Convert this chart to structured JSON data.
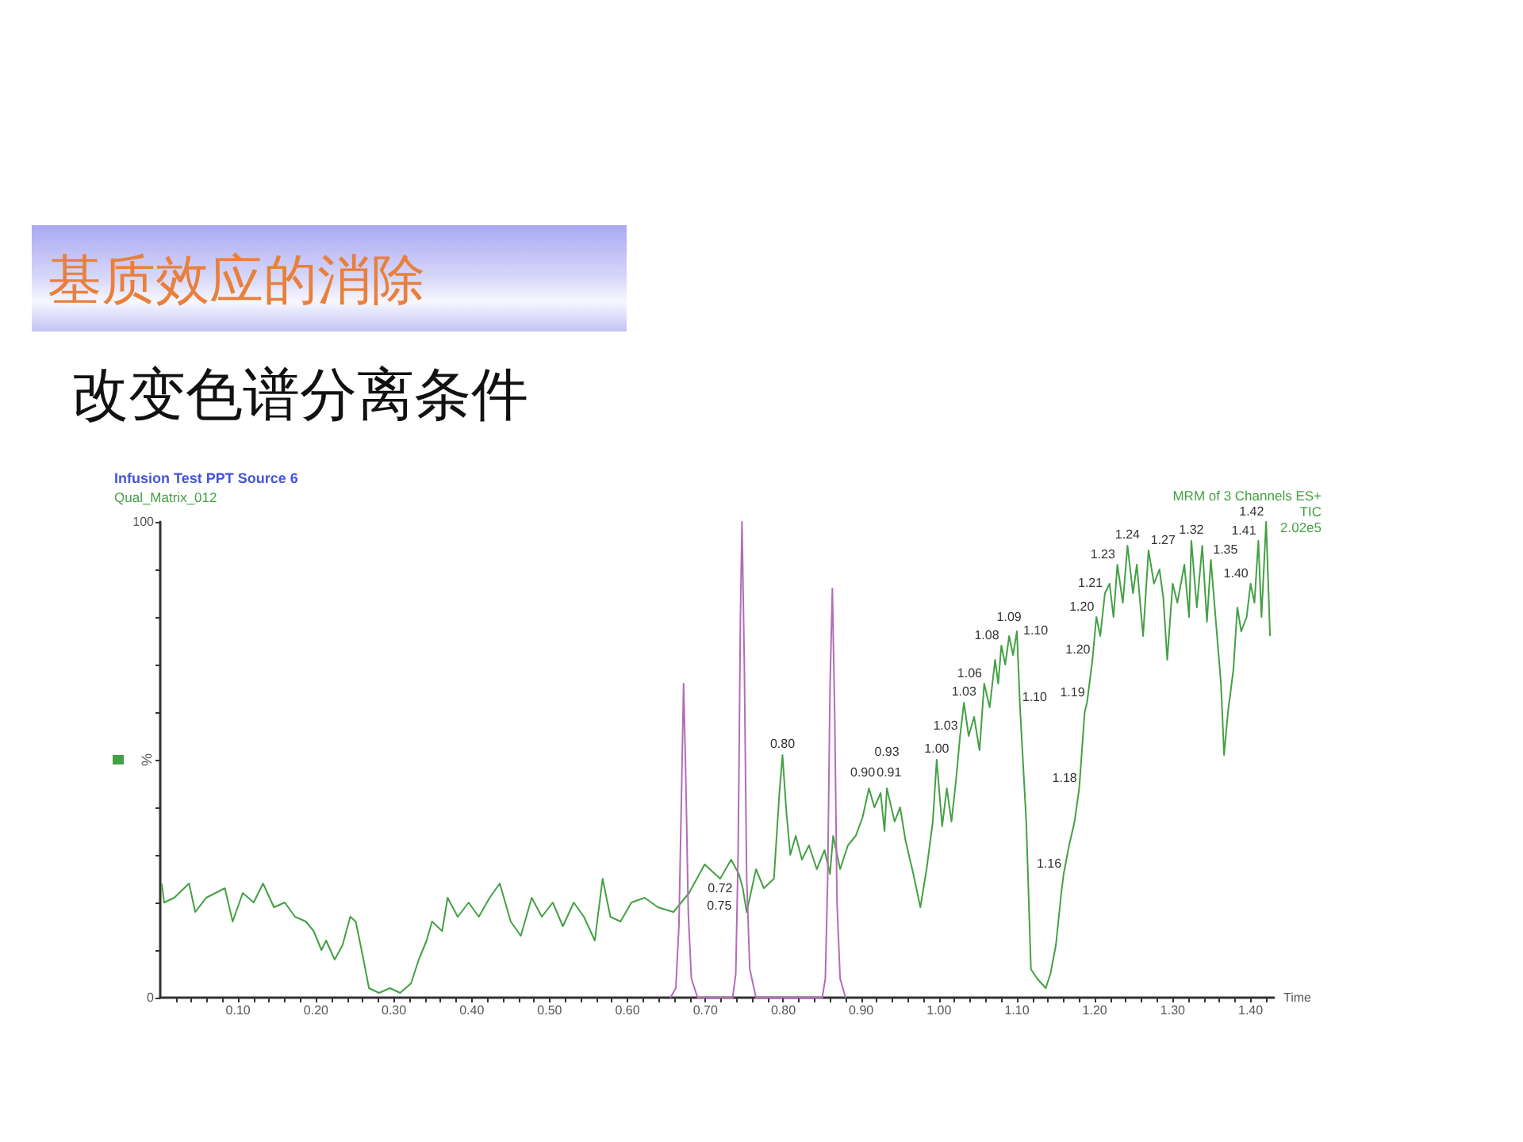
{
  "chart_data": {
    "type": "line",
    "title": "基质效应的消除",
    "subtitle": "改变色谱分离条件",
    "xlabel": "Time",
    "ylabel": "%",
    "annotations": [
      "Infusion Test PPT Source 6",
      "Qual_Matrix_012",
      "MRM of 3 Channels ES+",
      "TIC",
      "2.02e5",
      {
        "text": "0.72",
        "x": 0.719,
        "y": 25
      },
      {
        "text": "0.75",
        "x": 0.748,
        "y": 23
      },
      {
        "text": "0.80",
        "x": 0.799,
        "y": 51
      },
      {
        "text": "0.90",
        "x": 0.902,
        "y": 38
      },
      {
        "text": "0.91",
        "x": 0.91,
        "y": 44
      },
      {
        "text": "0.93",
        "x": 0.933,
        "y": 44
      },
      {
        "text": "1.00",
        "x": 0.997,
        "y": 50
      },
      {
        "text": "1.03",
        "x": 1.027,
        "y": 55
      },
      {
        "text": "1.03",
        "x": 1.032,
        "y": 62
      },
      {
        "text": "1.06",
        "x": 1.058,
        "y": 66
      },
      {
        "text": "1.08",
        "x": 1.08,
        "y": 74
      },
      {
        "text": "1.09",
        "x": 1.09,
        "y": 76
      },
      {
        "text": "1.10",
        "x": 1.1,
        "y": 77
      },
      {
        "text": "1.10",
        "x": 1.104,
        "y": 61
      },
      {
        "text": "1.16",
        "x": 1.16,
        "y": 26
      },
      {
        "text": "1.18",
        "x": 1.18,
        "y": 44
      },
      {
        "text": "1.19",
        "x": 1.19,
        "y": 62
      },
      {
        "text": "1.20",
        "x": 1.197,
        "y": 71
      },
      {
        "text": "1.20",
        "x": 1.202,
        "y": 80
      },
      {
        "text": "1.21",
        "x": 1.213,
        "y": 85
      },
      {
        "text": "1.23",
        "x": 1.229,
        "y": 91
      },
      {
        "text": "1.24",
        "x": 1.242,
        "y": 95
      },
      {
        "text": "1.27",
        "x": 1.269,
        "y": 94
      },
      {
        "text": "1.32",
        "x": 1.324,
        "y": 96
      },
      {
        "text": "1.35",
        "x": 1.349,
        "y": 92
      },
      {
        "text": "1.40",
        "x": 1.4,
        "y": 87
      },
      {
        "text": "1.41",
        "x": 1.41,
        "y": 96
      },
      {
        "text": "1.42",
        "x": 1.42,
        "y": 100
      }
    ],
    "series": [
      {
        "color": "#44a044",
        "x": [
          0.002,
          0.005,
          0.018,
          0.037,
          0.045,
          0.059,
          0.083,
          0.093,
          0.106,
          0.12,
          0.132,
          0.146,
          0.16,
          0.173,
          0.187,
          0.197,
          0.207,
          0.213,
          0.224,
          0.234,
          0.244,
          0.251,
          0.261,
          0.268,
          0.281,
          0.295,
          0.308,
          0.322,
          0.332,
          0.342,
          0.349,
          0.362,
          0.369,
          0.382,
          0.396,
          0.409,
          0.423,
          0.436,
          0.45,
          0.463,
          0.477,
          0.49,
          0.504,
          0.517,
          0.531,
          0.544,
          0.558,
          0.568,
          0.578,
          0.591,
          0.605,
          0.622,
          0.639,
          0.659,
          0.679,
          0.699,
          0.719,
          0.733,
          0.743,
          0.748,
          0.753,
          0.765,
          0.775,
          0.788,
          0.795,
          0.799,
          0.804,
          0.809,
          0.816,
          0.824,
          0.833,
          0.843,
          0.853,
          0.86,
          0.864,
          0.873,
          0.883,
          0.893,
          0.902,
          0.91,
          0.917,
          0.925,
          0.93,
          0.933,
          0.943,
          0.95,
          0.957,
          0.967,
          0.976,
          0.984,
          0.992,
          0.997,
          1.004,
          1.01,
          1.016,
          1.022,
          1.027,
          1.032,
          1.038,
          1.045,
          1.052,
          1.058,
          1.065,
          1.072,
          1.076,
          1.08,
          1.085,
          1.09,
          1.095,
          1.1,
          1.104,
          1.112,
          1.118,
          1.126,
          1.137,
          1.143,
          1.15,
          1.157,
          1.16,
          1.167,
          1.174,
          1.18,
          1.187,
          1.19,
          1.197,
          1.202,
          1.207,
          1.213,
          1.219,
          1.224,
          1.229,
          1.236,
          1.242,
          1.249,
          1.254,
          1.262,
          1.269,
          1.276,
          1.283,
          1.288,
          1.293,
          1.3,
          1.306,
          1.315,
          1.321,
          1.324,
          1.331,
          1.338,
          1.344,
          1.349,
          1.358,
          1.362,
          1.366,
          1.371,
          1.378,
          1.383,
          1.388,
          1.395,
          1.4,
          1.405,
          1.41,
          1.414,
          1.42,
          1.425
        ],
        "values": [
          24,
          20,
          21,
          24,
          18,
          21,
          23,
          16,
          22,
          20,
          24,
          19,
          20,
          17,
          16,
          14,
          10,
          12,
          8,
          11,
          17,
          16,
          8,
          2,
          1,
          2,
          1,
          3,
          8,
          12,
          16,
          14,
          21,
          17,
          20,
          17,
          21,
          24,
          16,
          13,
          21,
          17,
          20,
          15,
          20,
          17,
          12,
          25,
          17,
          16,
          20,
          21,
          19,
          18,
          22,
          28,
          25,
          29,
          26,
          23,
          18,
          27,
          23,
          25,
          43,
          51,
          39,
          30,
          34,
          29,
          32,
          27,
          31,
          26,
          34,
          27,
          32,
          34,
          38,
          44,
          40,
          43,
          35,
          44,
          37,
          40,
          33,
          26,
          19,
          27,
          37,
          50,
          36,
          44,
          37,
          46,
          55,
          62,
          55,
          59,
          52,
          66,
          61,
          71,
          66,
          74,
          70,
          76,
          72,
          77,
          61,
          37,
          6,
          4,
          2,
          5,
          11,
          22,
          26,
          32,
          37,
          44,
          60,
          62,
          71,
          80,
          76,
          85,
          87,
          80,
          91,
          83,
          95,
          85,
          91,
          76,
          94,
          87,
          90,
          84,
          71,
          87,
          83,
          91,
          80,
          96,
          82,
          95,
          79,
          92,
          74,
          66,
          51,
          60,
          69,
          82,
          77,
          80,
          87,
          83,
          96,
          80,
          100,
          76
        ]
      },
      {
        "color": "#b36cb8",
        "x": [
          0.655,
          0.662,
          0.666,
          0.669,
          0.672,
          0.675,
          0.678,
          0.682,
          0.69,
          0.735,
          0.739,
          0.742,
          0.745,
          0.747,
          0.75,
          0.753,
          0.757,
          0.765,
          0.85,
          0.854,
          0.857,
          0.86,
          0.863,
          0.866,
          0.869,
          0.873,
          0.88
        ],
        "values": [
          0,
          2,
          15,
          40,
          66,
          45,
          18,
          4,
          0,
          0,
          5,
          30,
          80,
          100,
          70,
          25,
          6,
          0,
          0,
          4,
          25,
          65,
          86,
          60,
          20,
          4,
          0
        ]
      }
    ],
    "xlim": [
      0,
      1.43
    ],
    "ylim": [
      0,
      100
    ],
    "xticks": [
      {
        "value": 0.02,
        "label": null
      },
      {
        "value": 0.04,
        "label": null
      },
      {
        "value": 0.06,
        "label": null
      },
      {
        "value": 0.08,
        "label": null
      },
      {
        "value": 0.1,
        "label": "0.10"
      },
      {
        "value": 0.12,
        "label": null
      },
      {
        "value": 0.14,
        "label": null
      },
      {
        "value": 0.16,
        "label": null
      },
      {
        "value": 0.18,
        "label": null
      },
      {
        "value": 0.2,
        "label": "0.20"
      },
      {
        "value": 0.22,
        "label": null
      },
      {
        "value": 0.24,
        "label": null
      },
      {
        "value": 0.26,
        "label": null
      },
      {
        "value": 0.28,
        "label": null
      },
      {
        "value": 0.3,
        "label": "0.30"
      },
      {
        "value": 0.32,
        "label": null
      },
      {
        "value": 0.34,
        "label": null
      },
      {
        "value": 0.36,
        "label": null
      },
      {
        "value": 0.38,
        "label": null
      },
      {
        "value": 0.4,
        "label": "0.40"
      },
      {
        "value": 0.42,
        "label": null
      },
      {
        "value": 0.44,
        "label": null
      },
      {
        "value": 0.46,
        "label": null
      },
      {
        "value": 0.48,
        "label": null
      },
      {
        "value": 0.5,
        "label": "0.50"
      },
      {
        "value": 0.52,
        "label": null
      },
      {
        "value": 0.54,
        "label": null
      },
      {
        "value": 0.56,
        "label": null
      },
      {
        "value": 0.58,
        "label": null
      },
      {
        "value": 0.6,
        "label": "0.60"
      },
      {
        "value": 0.62,
        "label": null
      },
      {
        "value": 0.64,
        "label": null
      },
      {
        "value": 0.66,
        "label": null
      },
      {
        "value": 0.68,
        "label": null
      },
      {
        "value": 0.7,
        "label": "0.70"
      },
      {
        "value": 0.72,
        "label": null
      },
      {
        "value": 0.74,
        "label": null
      },
      {
        "value": 0.76,
        "label": null
      },
      {
        "value": 0.78,
        "label": null
      },
      {
        "value": 0.8,
        "label": "0.80"
      },
      {
        "value": 0.82,
        "label": null
      },
      {
        "value": 0.84,
        "label": null
      },
      {
        "value": 0.86,
        "label": null
      },
      {
        "value": 0.88,
        "label": null
      },
      {
        "value": 0.9,
        "label": "0.90"
      },
      {
        "value": 0.92,
        "label": null
      },
      {
        "value": 0.94,
        "label": null
      },
      {
        "value": 0.96,
        "label": null
      },
      {
        "value": 0.98,
        "label": null
      },
      {
        "value": 1.0,
        "label": "1.00"
      },
      {
        "value": 1.02,
        "label": null
      },
      {
        "value": 1.04,
        "label": null
      },
      {
        "value": 1.06,
        "label": null
      },
      {
        "value": 1.08,
        "label": null
      },
      {
        "value": 1.1,
        "label": "1.10"
      },
      {
        "value": 1.12,
        "label": null
      },
      {
        "value": 1.14,
        "label": null
      },
      {
        "value": 1.16,
        "label": null
      },
      {
        "value": 1.18,
        "label": null
      },
      {
        "value": 1.2,
        "label": "1.20"
      },
      {
        "value": 1.22,
        "label": null
      },
      {
        "value": 1.24,
        "label": null
      },
      {
        "value": 1.26,
        "label": null
      },
      {
        "value": 1.28,
        "label": null
      },
      {
        "value": 1.3,
        "label": "1.30"
      },
      {
        "value": 1.32,
        "label": null
      },
      {
        "value": 1.34,
        "label": null
      },
      {
        "value": 1.36,
        "label": null
      },
      {
        "value": 1.38,
        "label": null
      },
      {
        "value": 1.4,
        "label": "1.40"
      },
      {
        "value": 1.42,
        "label": null
      }
    ],
    "yticks": [
      0,
      {
        "value": 10,
        "label": null
      },
      {
        "value": 20,
        "label": null
      },
      {
        "value": 30,
        "label": null
      },
      {
        "value": 40,
        "label": null
      },
      {
        "value": 50,
        "label": null
      },
      {
        "value": 60,
        "label": null
      },
      {
        "value": 70,
        "label": null
      },
      {
        "value": 80,
        "label": null
      },
      {
        "value": 90,
        "label": null
      },
      100
    ],
    "marker": "none"
  }
}
